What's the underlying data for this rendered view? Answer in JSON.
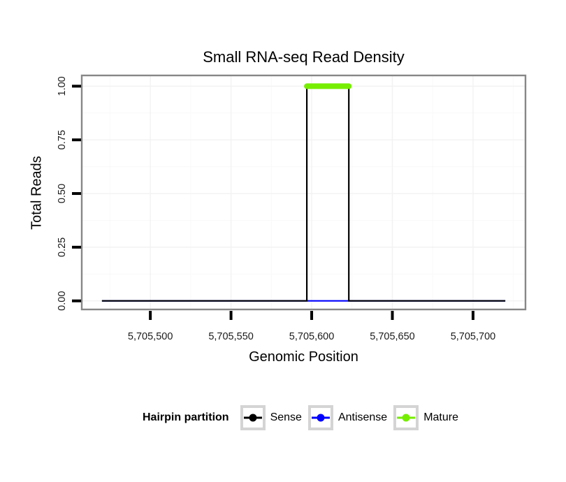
{
  "chart_data": {
    "type": "line",
    "title": "Small RNA-seq Read Density",
    "xlabel": "Genomic Position",
    "ylabel": "Total Reads",
    "xlim": [
      5705457.5,
      5705732.5
    ],
    "ylim": [
      -0.04,
      1.05
    ],
    "x_ticks": [
      {
        "value": 5705500,
        "label": "5,705,500"
      },
      {
        "value": 5705550,
        "label": "5,705,550"
      },
      {
        "value": 5705600,
        "label": "5,705,600"
      },
      {
        "value": 5705650,
        "label": "5,705,650"
      },
      {
        "value": 5705700,
        "label": "5,705,700"
      }
    ],
    "y_ticks": [
      {
        "value": 0.0,
        "label": "0.00"
      },
      {
        "value": 0.25,
        "label": "0.25"
      },
      {
        "value": 0.5,
        "label": "0.50"
      },
      {
        "value": 0.75,
        "label": "0.75"
      },
      {
        "value": 1.0,
        "label": "1.00"
      }
    ],
    "x_minor_ticks": [
      5705475,
      5705525,
      5705575,
      5705625,
      5705675,
      5705725
    ],
    "y_minor_ticks": [
      0.125,
      0.375,
      0.625,
      0.875
    ],
    "grid": {
      "on": true,
      "major_color": "#f2f2f2",
      "minor_color": "#f9f9f9"
    },
    "panel": {
      "border_color": "#878787",
      "background": "#ffffff"
    },
    "axis": {
      "tick_color": "#000000",
      "tick_label_color": "#1a1a1a"
    },
    "legend": {
      "position": "bottom",
      "title": "Hairpin partition",
      "entries": [
        {
          "label": "Sense",
          "color": "#000000"
        },
        {
          "label": "Antisense",
          "color": "#0000ff"
        },
        {
          "label": "Mature",
          "color": "#76ee00"
        }
      ]
    },
    "series": [
      {
        "name": "Antisense",
        "color": "#0000ff",
        "linewidth": 2.2,
        "linecap": "butt",
        "points": [
          [
            5705470,
            0
          ],
          [
            5705720,
            0
          ]
        ]
      },
      {
        "name": "Sense",
        "color": "#000000",
        "linewidth": 2.2,
        "linecap": "butt",
        "points": [
          [
            5705470,
            0
          ],
          [
            5705597,
            0
          ],
          [
            5705597,
            1
          ],
          [
            5705623,
            1
          ],
          [
            5705623,
            0
          ],
          [
            5705720,
            0
          ]
        ]
      },
      {
        "name": "Mature",
        "color": "#76ee00",
        "linewidth": 8,
        "linecap": "round",
        "points": [
          [
            5705597,
            1
          ],
          [
            5705623,
            1
          ]
        ]
      }
    ]
  }
}
